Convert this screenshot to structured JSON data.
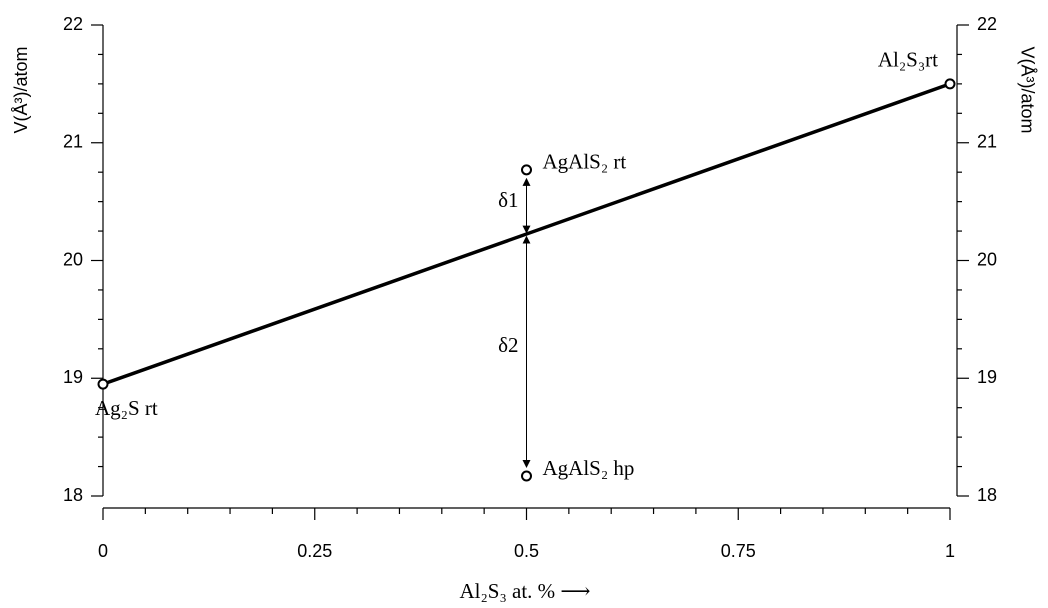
{
  "chart_data": {
    "type": "scatter",
    "xlabel": "Al₂S₃ at. % ⟶",
    "ylabel": "V(Å³)/atom",
    "xlim": [
      0,
      1
    ],
    "xticks": [
      0,
      0.25,
      0.5,
      0.75,
      1
    ],
    "xminorticks": [
      0.05,
      0.1,
      0.15,
      0.2,
      0.3,
      0.35,
      0.4,
      0.45,
      0.55,
      0.6,
      0.65,
      0.7,
      0.8,
      0.85,
      0.9,
      0.95
    ],
    "ylim": [
      18,
      22
    ],
    "yticks": [
      18,
      19,
      20,
      21,
      22
    ],
    "yminorticks": [
      18.25,
      18.5,
      18.75,
      19.25,
      19.5,
      19.75,
      20.25,
      20.5,
      20.75,
      21.25,
      21.5,
      21.75
    ],
    "line": {
      "x": [
        0,
        1
      ],
      "y": [
        18.95,
        21.5
      ],
      "color": "#000000"
    },
    "points": {
      "x": [
        0,
        0.5,
        0.5,
        1
      ],
      "y": [
        18.95,
        20.77,
        18.17,
        21.5
      ],
      "labels": [
        "Ag₂S rt",
        "AgAlS₂ rt",
        "AgAlS₂ hp",
        "Al₂S₃rt"
      ]
    },
    "annotations": [
      {
        "text": "δ1",
        "x": 0.5,
        "y": [
          20.22,
          20.77
        ]
      },
      {
        "text": "δ2",
        "x": 0.5,
        "y": [
          20.22,
          18.17
        ]
      }
    ]
  }
}
